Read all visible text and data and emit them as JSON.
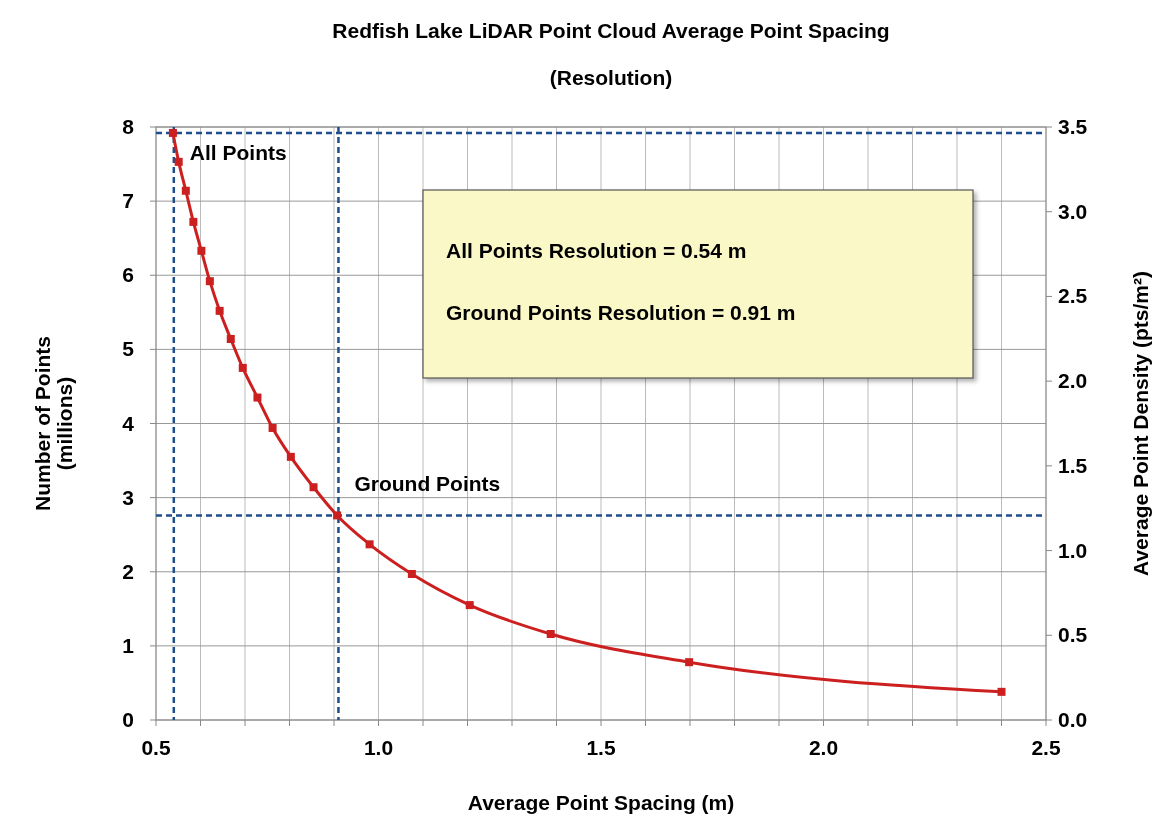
{
  "chart_data": {
    "type": "line",
    "title": "Redfish Lake LiDAR Point Cloud Average Point Spacing",
    "subtitle": "(Resolution)",
    "xlabel": "Average Point Spacing (m)",
    "ylabel": "Number of Points\n(millions)",
    "y2label": "Average Point Density (pts/m²)",
    "series": [
      {
        "color": "#cc1f1f",
        "x": [
          0.538,
          0.551,
          0.567,
          0.584,
          0.602,
          0.621,
          0.643,
          0.668,
          0.695,
          0.728,
          0.762,
          0.803,
          0.854,
          0.907,
          0.98,
          1.075,
          1.205,
          1.387,
          1.698,
          2.4
        ],
        "values": [
          7.92,
          7.53,
          7.14,
          6.72,
          6.33,
          5.92,
          5.52,
          5.14,
          4.75,
          4.35,
          3.94,
          3.55,
          3.14,
          2.76,
          2.37,
          1.97,
          1.55,
          1.16,
          0.78,
          0.38
        ]
      }
    ],
    "xlim": [
      0.5,
      2.5
    ],
    "xticks": [
      0.5,
      {
        "value": 0.6,
        "label": null
      },
      {
        "value": 0.7,
        "label": null
      },
      {
        "value": 0.8,
        "label": null
      },
      {
        "value": 0.9,
        "label": null
      },
      {
        "value": 1.0,
        "label": "1.0"
      },
      {
        "value": 1.1,
        "label": null
      },
      {
        "value": 1.2,
        "label": null
      },
      {
        "value": 1.3,
        "label": null
      },
      {
        "value": 1.4,
        "label": null
      },
      1.5,
      {
        "value": 1.6,
        "label": null
      },
      {
        "value": 1.7,
        "label": null
      },
      {
        "value": 1.8,
        "label": null
      },
      {
        "value": 1.9,
        "label": null
      },
      {
        "value": 2.0,
        "label": "2.0"
      },
      {
        "value": 2.1,
        "label": null
      },
      {
        "value": 2.2,
        "label": null
      },
      {
        "value": 2.3,
        "label": null
      },
      {
        "value": 2.4,
        "label": null
      },
      2.5
    ],
    "ylim": [
      0,
      8
    ],
    "yticks": [
      0,
      1,
      2,
      3,
      4,
      5,
      6,
      7,
      8
    ],
    "y2lim": [
      0,
      3.5
    ],
    "y2ticks": [
      {
        "value": 0,
        "label": "0.0"
      },
      0.5,
      {
        "value": 1,
        "label": "1.0"
      },
      1.5,
      {
        "value": 2,
        "label": "2.0"
      },
      2.5,
      {
        "value": 3,
        "label": "3.0"
      },
      3.5
    ],
    "ref_lines": [
      {
        "axis": "x",
        "value": 0.54,
        "color": "#1f4e8c",
        "line_style": "dashed"
      },
      {
        "axis": "x",
        "value": 0.91,
        "color": "#1f4e8c",
        "line_style": "dashed"
      },
      {
        "axis": "y",
        "value": 7.92,
        "color": "#1f4e8c",
        "line_style": "dashed"
      },
      {
        "axis": "y",
        "value": 2.76,
        "color": "#1f4e8c",
        "line_style": "dashed"
      }
    ],
    "annotations": [
      {
        "text": "All Points",
        "x": 0.54,
        "y": 7.92
      },
      {
        "text": "Ground Points",
        "x": 0.91,
        "y": 2.76
      },
      "All Points Resolution = 0.54 m",
      "Ground Points Resolution = 0.91 m"
    ],
    "grid": true,
    "marker": "square",
    "line_style": "solid"
  }
}
